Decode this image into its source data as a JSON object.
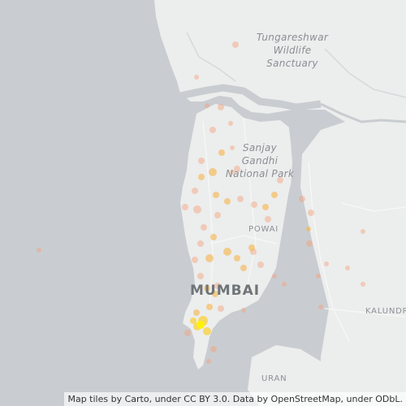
{
  "map": {
    "labels": {
      "tungareshwar": [
        "Tungareshwar",
        "Wildlife",
        "Sanctuary"
      ],
      "sanjay": [
        "Sanjay",
        "Gandhi",
        "National Park"
      ],
      "powai": "POWAI",
      "mumbai": "MUMBAI",
      "kalundre": "KALUNDR",
      "uran": "URAN"
    },
    "attribution": "Map tiles by Carto, under CC BY 3.0. Data by OpenStreetMap, under ODbL.",
    "colors": {
      "water": "#c9cdd1",
      "land": "#eceded",
      "heat_low": "#f6a07a",
      "heat_mid": "#f7b54a",
      "heat_high": "#fff200"
    }
  }
}
